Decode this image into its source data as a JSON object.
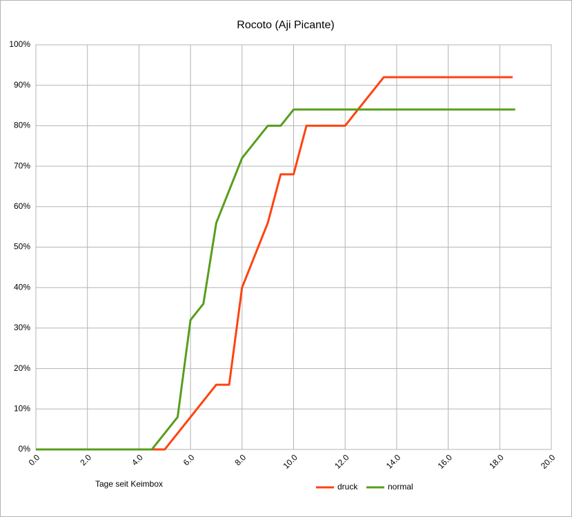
{
  "chart_data": {
    "type": "line",
    "title": "Rocoto (Aji Picante)",
    "x_label": "Tage seit Keimbox",
    "series": [
      {
        "name": "druck",
        "color": "#ff420e",
        "x": [
          0,
          5.0,
          5.5,
          6.0,
          6.5,
          7.0,
          7.5,
          8.0,
          9.0,
          9.5,
          10.0,
          10.5,
          12.0,
          13.5,
          18.5
        ],
        "values": [
          0,
          0,
          4,
          8,
          12,
          16,
          16,
          40,
          56,
          68,
          68,
          80,
          80,
          92,
          92
        ]
      },
      {
        "name": "normal",
        "color": "#579d1c",
        "x": [
          0,
          4.5,
          5.5,
          6.0,
          6.5,
          7.0,
          7.5,
          8.0,
          9.0,
          9.5,
          10.0,
          18.6
        ],
        "values": [
          0,
          0,
          8,
          32,
          36,
          56,
          64,
          72,
          80,
          80,
          84,
          84
        ]
      }
    ],
    "xlim": [
      0,
      20
    ],
    "xticks": [
      {
        "value": 0,
        "label": "0.0"
      },
      {
        "value": 2,
        "label": "2.0"
      },
      {
        "value": 4,
        "label": "4.0"
      },
      {
        "value": 6,
        "label": "6.0"
      },
      {
        "value": 8,
        "label": "8.0"
      },
      {
        "value": 10,
        "label": "10.0"
      },
      {
        "value": 12,
        "label": "12.0"
      },
      {
        "value": 14,
        "label": "14.0"
      },
      {
        "value": 16,
        "label": "16.0"
      },
      {
        "value": 18,
        "label": "18.0"
      },
      {
        "value": 20,
        "label": "20.0"
      }
    ],
    "ylim": [
      0,
      100
    ],
    "yticks": [
      {
        "value": 0,
        "label": "0%"
      },
      {
        "value": 10,
        "label": "10%"
      },
      {
        "value": 20,
        "label": "20%"
      },
      {
        "value": 30,
        "label": "30%"
      },
      {
        "value": 40,
        "label": "40%"
      },
      {
        "value": 50,
        "label": "50%"
      },
      {
        "value": 60,
        "label": "60%"
      },
      {
        "value": 70,
        "label": "70%"
      },
      {
        "value": 80,
        "label": "80%"
      },
      {
        "value": 90,
        "label": "90%"
      },
      {
        "value": 100,
        "label": "100%"
      }
    ],
    "grid": true,
    "legend": "bottom"
  }
}
